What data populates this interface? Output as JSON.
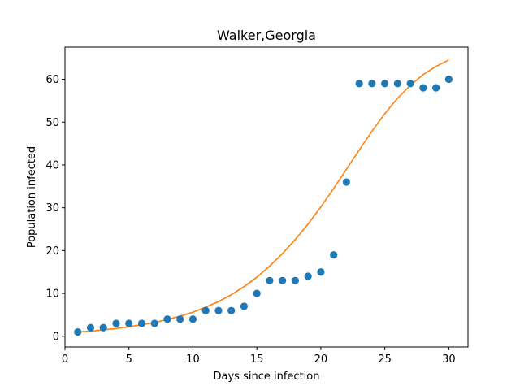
{
  "chart_data": {
    "type": "scatter",
    "title": "Walker,Georgia",
    "xlabel": "Days since infection",
    "ylabel": "Population infected",
    "xlim": [
      0,
      31.5
    ],
    "ylim": [
      -2.5,
      67.5
    ],
    "xticks": [
      0,
      5,
      10,
      15,
      20,
      25,
      30
    ],
    "yticks": [
      0,
      10,
      20,
      30,
      40,
      50,
      60
    ],
    "grid": false,
    "series": [
      {
        "kind": "scatter",
        "color": "#1f77b4",
        "x": [
          1,
          2,
          3,
          4,
          5,
          6,
          7,
          8,
          9,
          10,
          11,
          12,
          13,
          14,
          15,
          16,
          17,
          18,
          19,
          20,
          21,
          22,
          23,
          24,
          25,
          26,
          27,
          28,
          29,
          30
        ],
        "y": [
          1,
          2,
          2,
          3,
          3,
          3,
          3,
          4,
          4,
          4,
          6,
          6,
          6,
          7,
          10,
          13,
          13,
          13,
          14,
          15,
          19,
          36,
          59,
          59,
          59,
          59,
          59,
          58,
          58,
          60
        ]
      },
      {
        "kind": "line",
        "color": "#ff7f0e",
        "x": [
          1,
          2,
          3,
          4,
          5,
          6,
          7,
          8,
          9,
          10,
          11,
          12,
          13,
          14,
          15,
          16,
          17,
          18,
          19,
          20,
          21,
          22,
          23,
          24,
          25,
          26,
          27,
          28,
          29,
          30
        ],
        "y": [
          1.0,
          1.2,
          1.5,
          1.8,
          2.2,
          2.7,
          3.2,
          3.9,
          4.7,
          5.6,
          6.8,
          8.1,
          9.7,
          11.6,
          13.8,
          16.4,
          19.3,
          22.6,
          26.2,
          30.2,
          34.5,
          39.0,
          43.5,
          47.9,
          52.0,
          55.6,
          58.6,
          61.1,
          63.0,
          64.5
        ]
      }
    ]
  }
}
